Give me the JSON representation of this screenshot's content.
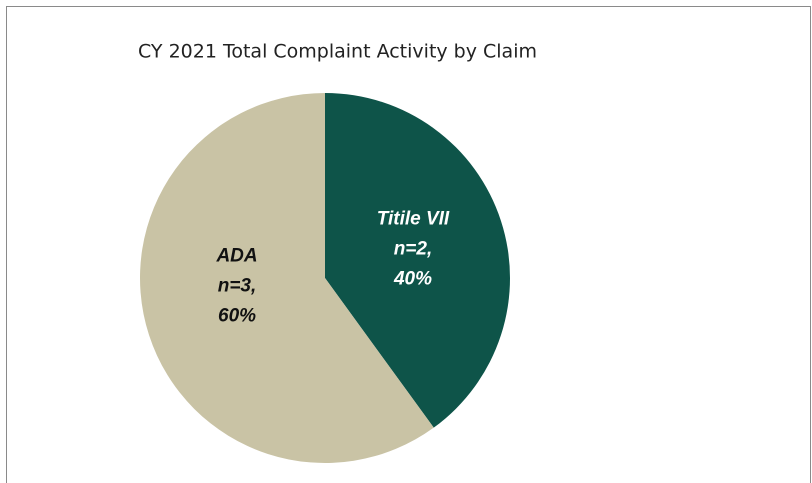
{
  "chart_data": {
    "type": "pie",
    "title": "CY 2021 Total Complaint Activity by Claim",
    "categories": [
      "Titile VII",
      "ADA"
    ],
    "values": [
      40,
      60
    ],
    "count_labels": [
      "n=2,",
      "n=3,"
    ],
    "value_labels": [
      "40%",
      "60%"
    ],
    "colors": [
      "#0e5449",
      "#c9c3a5"
    ],
    "label_colors": [
      "#ffffff",
      "#111111"
    ]
  }
}
